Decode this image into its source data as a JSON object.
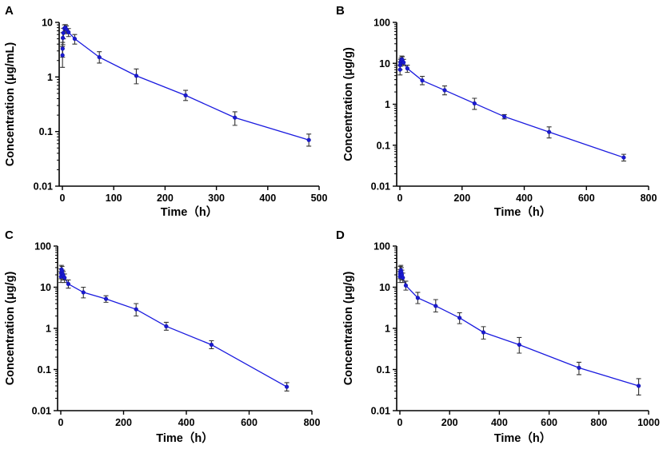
{
  "chart_data": [
    {
      "id": "A",
      "type": "line",
      "scale_y": "log",
      "panel_label": "A",
      "xlabel": "Time（h）",
      "ylabel": "Concentration (μg/mL)",
      "xlim": [
        0,
        500
      ],
      "ylim": [
        0.01,
        10
      ],
      "xticks": [
        0,
        100,
        200,
        300,
        400,
        500
      ],
      "yticks": [
        0.01,
        0.1,
        1,
        10
      ],
      "ytick_labels": [
        "0.01",
        "0.1",
        "1",
        "10"
      ],
      "points": [
        {
          "x": 0.25,
          "y": 2.5,
          "lo": 1.5,
          "hi": 3.6
        },
        {
          "x": 0.5,
          "y": 3.3,
          "lo": 2.3,
          "hi": 4.3
        },
        {
          "x": 1,
          "y": 5.2,
          "lo": 3.9,
          "hi": 6.5
        },
        {
          "x": 2,
          "y": 6.4,
          "lo": 5.0,
          "hi": 7.8
        },
        {
          "x": 4,
          "y": 7.8,
          "lo": 6.6,
          "hi": 9.0
        },
        {
          "x": 6,
          "y": 8.0,
          "lo": 6.9,
          "hi": 9.1
        },
        {
          "x": 8,
          "y": 7.4,
          "lo": 6.2,
          "hi": 8.6
        },
        {
          "x": 12,
          "y": 6.6,
          "lo": 5.5,
          "hi": 7.7
        },
        {
          "x": 24,
          "y": 5.0,
          "lo": 4.0,
          "hi": 6.0
        },
        {
          "x": 72,
          "y": 2.3,
          "lo": 1.8,
          "hi": 2.9
        },
        {
          "x": 144,
          "y": 1.05,
          "lo": 0.75,
          "hi": 1.4
        },
        {
          "x": 240,
          "y": 0.46,
          "lo": 0.37,
          "hi": 0.57
        },
        {
          "x": 336,
          "y": 0.18,
          "lo": 0.13,
          "hi": 0.23
        },
        {
          "x": 480,
          "y": 0.07,
          "lo": 0.054,
          "hi": 0.09
        }
      ]
    },
    {
      "id": "B",
      "type": "line",
      "scale_y": "log",
      "panel_label": "B",
      "xlabel": "Time（h）",
      "ylabel": "Concentration (μg/g)",
      "xlim": [
        0,
        800
      ],
      "ylim": [
        0.01,
        100
      ],
      "xticks": [
        0,
        200,
        400,
        600,
        800
      ],
      "yticks": [
        0.01,
        0.1,
        1,
        10,
        100
      ],
      "ytick_labels": [
        "0.01",
        "0.1",
        "1",
        "10",
        "100"
      ],
      "points": [
        {
          "x": 0.5,
          "y": 7.0,
          "lo": 5.2,
          "hi": 9.0
        },
        {
          "x": 1,
          "y": 9.0,
          "lo": 7.0,
          "hi": 11.0
        },
        {
          "x": 2,
          "y": 10.5,
          "lo": 8.5,
          "hi": 12.5
        },
        {
          "x": 4,
          "y": 11.5,
          "lo": 9.5,
          "hi": 13.5
        },
        {
          "x": 6,
          "y": 12.5,
          "lo": 10.5,
          "hi": 15.0
        },
        {
          "x": 8,
          "y": 12.0,
          "lo": 10.0,
          "hi": 14.5
        },
        {
          "x": 12,
          "y": 10.5,
          "lo": 8.8,
          "hi": 12.5
        },
        {
          "x": 24,
          "y": 7.5,
          "lo": 6.0,
          "hi": 9.0
        },
        {
          "x": 72,
          "y": 3.8,
          "lo": 3.0,
          "hi": 4.8
        },
        {
          "x": 144,
          "y": 2.2,
          "lo": 1.7,
          "hi": 2.8
        },
        {
          "x": 240,
          "y": 1.05,
          "lo": 0.75,
          "hi": 1.4
        },
        {
          "x": 336,
          "y": 0.5,
          "lo": 0.44,
          "hi": 0.56
        },
        {
          "x": 480,
          "y": 0.21,
          "lo": 0.15,
          "hi": 0.28
        },
        {
          "x": 720,
          "y": 0.05,
          "lo": 0.041,
          "hi": 0.06
        }
      ]
    },
    {
      "id": "C",
      "type": "line",
      "scale_y": "log",
      "panel_label": "C",
      "xlabel": "Time（h）",
      "ylabel": "Concentration (μg/g)",
      "xlim": [
        0,
        800
      ],
      "ylim": [
        0.01,
        100
      ],
      "xticks": [
        0,
        200,
        400,
        600,
        800
      ],
      "yticks": [
        0.01,
        0.1,
        1,
        10,
        100
      ],
      "ytick_labels": [
        "0.01",
        "0.1",
        "1",
        "10",
        "100"
      ],
      "points": [
        {
          "x": 0.5,
          "y": 18.0,
          "lo": 13.0,
          "hi": 24.0
        },
        {
          "x": 1,
          "y": 22.0,
          "lo": 16.0,
          "hi": 28.0
        },
        {
          "x": 2,
          "y": 27.0,
          "lo": 21.0,
          "hi": 34.0
        },
        {
          "x": 4,
          "y": 25.0,
          "lo": 19.0,
          "hi": 32.0
        },
        {
          "x": 6,
          "y": 21.0,
          "lo": 16.0,
          "hi": 26.0
        },
        {
          "x": 8,
          "y": 19.0,
          "lo": 15.0,
          "hi": 24.0
        },
        {
          "x": 12,
          "y": 17.0,
          "lo": 13.0,
          "hi": 21.0
        },
        {
          "x": 24,
          "y": 12.0,
          "lo": 9.5,
          "hi": 15.0
        },
        {
          "x": 72,
          "y": 7.5,
          "lo": 5.5,
          "hi": 10.0
        },
        {
          "x": 144,
          "y": 5.2,
          "lo": 4.3,
          "hi": 6.2
        },
        {
          "x": 240,
          "y": 2.9,
          "lo": 2.0,
          "hi": 4.0
        },
        {
          "x": 336,
          "y": 1.12,
          "lo": 0.9,
          "hi": 1.4
        },
        {
          "x": 480,
          "y": 0.4,
          "lo": 0.32,
          "hi": 0.5
        },
        {
          "x": 720,
          "y": 0.038,
          "lo": 0.03,
          "hi": 0.048
        }
      ]
    },
    {
      "id": "D",
      "type": "line",
      "scale_y": "log",
      "panel_label": "D",
      "xlabel": "Time（h）",
      "ylabel": "Concentration (μg/g)",
      "xlim": [
        0,
        1000
      ],
      "ylim": [
        0.01,
        100
      ],
      "xticks": [
        0,
        200,
        400,
        600,
        800,
        1000
      ],
      "yticks": [
        0.01,
        0.1,
        1,
        10,
        100
      ],
      "ytick_labels": [
        "0.01",
        "0.1",
        "1",
        "10",
        "100"
      ],
      "points": [
        {
          "x": 0.5,
          "y": 18.0,
          "lo": 13.0,
          "hi": 24.0
        },
        {
          "x": 1,
          "y": 21.0,
          "lo": 16.0,
          "hi": 27.0
        },
        {
          "x": 2,
          "y": 24.0,
          "lo": 18.0,
          "hi": 32.0
        },
        {
          "x": 4,
          "y": 26.0,
          "lo": 19.0,
          "hi": 34.0
        },
        {
          "x": 6,
          "y": 23.0,
          "lo": 17.0,
          "hi": 30.0
        },
        {
          "x": 8,
          "y": 20.0,
          "lo": 15.0,
          "hi": 26.0
        },
        {
          "x": 12,
          "y": 17.0,
          "lo": 13.0,
          "hi": 22.0
        },
        {
          "x": 24,
          "y": 11.0,
          "lo": 8.5,
          "hi": 14.0
        },
        {
          "x": 72,
          "y": 5.5,
          "lo": 4.0,
          "hi": 7.5
        },
        {
          "x": 144,
          "y": 3.5,
          "lo": 2.5,
          "hi": 5.0
        },
        {
          "x": 240,
          "y": 1.8,
          "lo": 1.3,
          "hi": 2.4
        },
        {
          "x": 336,
          "y": 0.8,
          "lo": 0.55,
          "hi": 1.1
        },
        {
          "x": 480,
          "y": 0.4,
          "lo": 0.25,
          "hi": 0.6
        },
        {
          "x": 720,
          "y": 0.11,
          "lo": 0.075,
          "hi": 0.15
        },
        {
          "x": 960,
          "y": 0.04,
          "lo": 0.024,
          "hi": 0.06
        }
      ]
    }
  ]
}
